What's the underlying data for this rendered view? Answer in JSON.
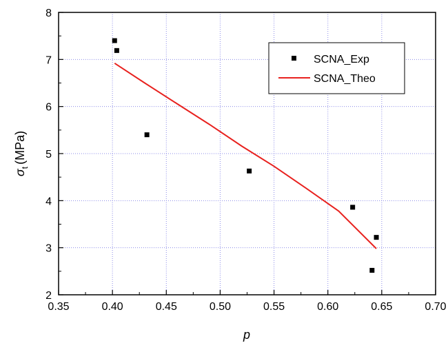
{
  "chart_data": {
    "type": "scatter",
    "xlabel": "p",
    "ylabel": "σt (MPa)",
    "ylabel_symbol": "σ",
    "ylabel_subscript": "t",
    "ylabel_unit": "(MPa)",
    "xlim": [
      0.35,
      0.7
    ],
    "ylim": [
      2,
      8
    ],
    "xticks": [
      "0.35",
      "0.40",
      "0.45",
      "0.50",
      "0.55",
      "0.60",
      "0.65",
      "0.70"
    ],
    "yticks": [
      "2",
      "3",
      "4",
      "5",
      "6",
      "7",
      "8"
    ],
    "grid": true,
    "legend_position": "top-right",
    "series": [
      {
        "name": "SCNA_Exp",
        "kind": "scatter",
        "marker": "square",
        "color": "#000000",
        "points": [
          {
            "x": 0.402,
            "y": 7.4
          },
          {
            "x": 0.404,
            "y": 7.19
          },
          {
            "x": 0.432,
            "y": 5.4
          },
          {
            "x": 0.527,
            "y": 4.63
          },
          {
            "x": 0.623,
            "y": 3.86
          },
          {
            "x": 0.641,
            "y": 2.52
          },
          {
            "x": 0.645,
            "y": 3.22
          }
        ]
      },
      {
        "name": "SCNA_Theo",
        "kind": "line",
        "color": "#e8211e",
        "points": [
          {
            "x": 0.402,
            "y": 6.92
          },
          {
            "x": 0.43,
            "y": 6.5
          },
          {
            "x": 0.46,
            "y": 6.06
          },
          {
            "x": 0.49,
            "y": 5.62
          },
          {
            "x": 0.52,
            "y": 5.16
          },
          {
            "x": 0.55,
            "y": 4.73
          },
          {
            "x": 0.58,
            "y": 4.26
          },
          {
            "x": 0.61,
            "y": 3.78
          },
          {
            "x": 0.645,
            "y": 2.98
          }
        ]
      }
    ]
  }
}
